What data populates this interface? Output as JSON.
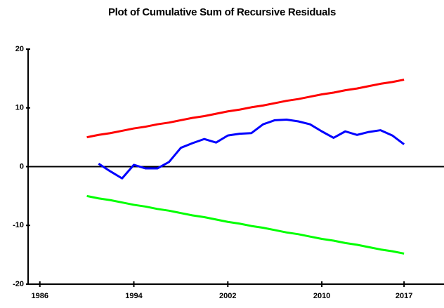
{
  "chart_data": {
    "type": "line",
    "title": "Plot of Cumulative Sum of Recursive Residuals",
    "xlim": [
      1985,
      2020.4
    ],
    "xticks": [
      1986,
      1994,
      2002,
      2010,
      2017
    ],
    "ylim": [
      -20,
      20
    ],
    "yticks": [
      20,
      10,
      0,
      -10,
      -20
    ],
    "series": [
      {
        "color": "#ff0000",
        "x": [
          1990,
          1991,
          1992,
          1993,
          1994,
          1995,
          1996,
          1997,
          1998,
          1999,
          2000,
          2001,
          2002,
          2003,
          2004,
          2005,
          2006,
          2007,
          2008,
          2009,
          2010,
          2011,
          2012,
          2013,
          2014,
          2015,
          2016,
          2017
        ],
        "values": [
          5.0,
          5.4,
          5.7,
          6.1,
          6.5,
          6.8,
          7.2,
          7.5,
          7.9,
          8.3,
          8.6,
          9.0,
          9.4,
          9.7,
          10.1,
          10.4,
          10.8,
          11.2,
          11.5,
          11.9,
          12.3,
          12.6,
          13.0,
          13.3,
          13.7,
          14.1,
          14.4,
          14.8
        ]
      },
      {
        "color": "#0000ff",
        "x": [
          1991,
          1992,
          1993,
          1994,
          1995,
          1996,
          1997,
          1998,
          1999,
          2000,
          2001,
          2002,
          2003,
          2004,
          2005,
          2006,
          2007,
          2008,
          2009,
          2010,
          2011,
          2012,
          2013,
          2014,
          2015,
          2016,
          2017
        ],
        "values": [
          0.5,
          -0.8,
          -2.0,
          0.3,
          -0.3,
          -0.3,
          0.8,
          3.2,
          4.0,
          4.7,
          4.1,
          5.3,
          5.6,
          5.7,
          7.2,
          7.9,
          8.0,
          7.7,
          7.2,
          6.0,
          4.9,
          6.0,
          5.4,
          5.9,
          6.2,
          5.3,
          3.8
        ]
      },
      {
        "color": "#00ff00",
        "x": [
          1990,
          1991,
          1992,
          1993,
          1994,
          1995,
          1996,
          1997,
          1998,
          1999,
          2000,
          2001,
          2002,
          2003,
          2004,
          2005,
          2006,
          2007,
          2008,
          2009,
          2010,
          2011,
          2012,
          2013,
          2014,
          2015,
          2016,
          2017
        ],
        "values": [
          -5.0,
          -5.4,
          -5.7,
          -6.1,
          -6.5,
          -6.8,
          -7.2,
          -7.5,
          -7.9,
          -8.3,
          -8.6,
          -9.0,
          -9.4,
          -9.7,
          -10.1,
          -10.4,
          -10.8,
          -11.2,
          -11.5,
          -11.9,
          -12.3,
          -12.6,
          -13.0,
          -13.3,
          -13.7,
          -14.1,
          -14.4,
          -14.8
        ]
      }
    ]
  }
}
